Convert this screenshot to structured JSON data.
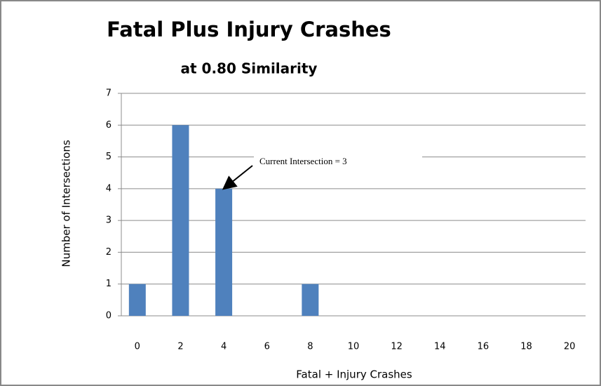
{
  "chart_data": {
    "type": "bar",
    "title": "Fatal Plus Injury Crashes",
    "subtitle": "at 0.80 Similarity",
    "x_label": "Fatal + Injury Crashes",
    "y_label": "Number of Intersections",
    "annotation": "Current Intersection = 3",
    "categories": [
      "0",
      "2",
      "4",
      "6",
      "8",
      "10",
      "12",
      "14",
      "16",
      "18",
      "20"
    ],
    "values": [
      1,
      6,
      4,
      0,
      1,
      0,
      0,
      0,
      0,
      0,
      0
    ],
    "color": "#4f81bd",
    "ylim": [
      0,
      7
    ],
    "yticks": [
      0,
      1,
      2,
      3,
      4,
      5,
      6,
      7
    ],
    "grid": true
  }
}
